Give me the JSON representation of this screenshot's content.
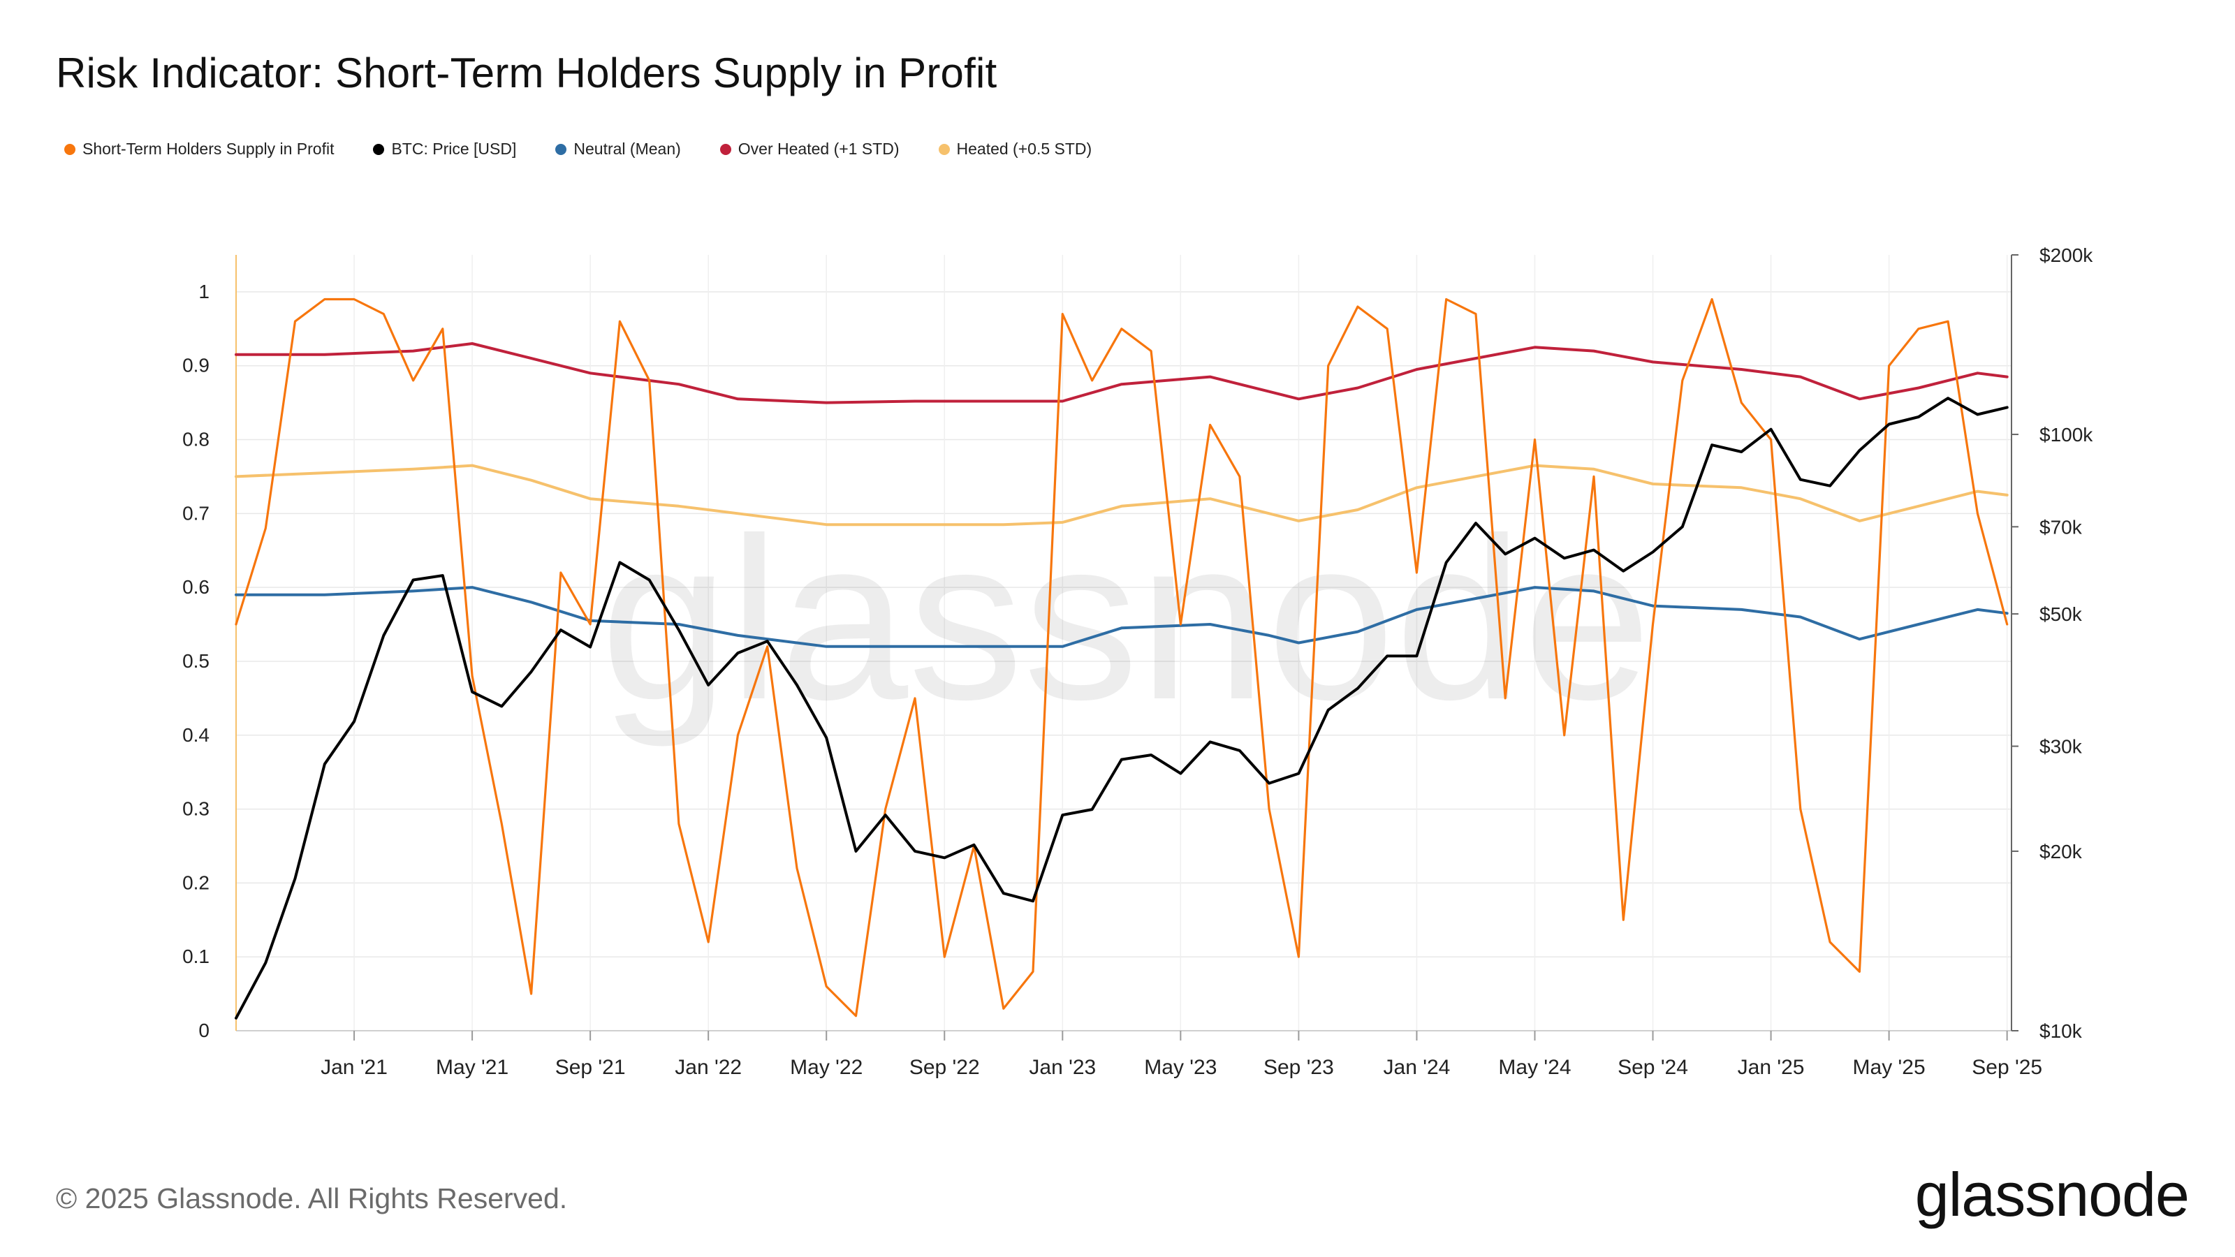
{
  "page": {
    "title": "Risk Indicator: Short-Term Holders Supply in Profit",
    "copyright": "© 2025 Glassnode. All Rights Reserved.",
    "logo": "glassnode",
    "watermark": "glassnode"
  },
  "chart_data": {
    "type": "line",
    "title": "Risk Indicator: Short-Term Holders Supply in Profit",
    "legend_placement": "top-left",
    "grid": true,
    "x_ticks": [
      "Jan '21",
      "May '21",
      "Sep '21",
      "Jan '22",
      "May '22",
      "Sep '22",
      "Jan '23",
      "May '23",
      "Sep '23",
      "Jan '24",
      "May '24",
      "Sep '24",
      "Jan '25",
      "May '25",
      "Sep '25"
    ],
    "x_range": [
      "2020-09",
      "2025-09"
    ],
    "y_left": {
      "range": [
        0,
        1.05
      ],
      "ticks": [
        "0",
        "0.1",
        "0.2",
        "0.3",
        "0.4",
        "0.5",
        "0.6",
        "0.7",
        "0.8",
        "0.9",
        "1"
      ]
    },
    "y_right": {
      "scale": "log",
      "unit": "USD",
      "range": [
        10000,
        200000
      ],
      "ticks": [
        {
          "label": "$10k",
          "value": 10000
        },
        {
          "label": "$20k",
          "value": 20000
        },
        {
          "label": "$30k",
          "value": 30000
        },
        {
          "label": "$50k",
          "value": 50000
        },
        {
          "label": "$70k",
          "value": 70000
        },
        {
          "label": "$100k",
          "value": 100000
        },
        {
          "label": "$200k",
          "value": 200000
        }
      ]
    },
    "series": [
      {
        "name": "Short-Term Holders Supply in Profit",
        "axis": "left",
        "color": "#f7760d",
        "points": [
          [
            "2020-09",
            0.55
          ],
          [
            "2020-10",
            0.68
          ],
          [
            "2020-11",
            0.96
          ],
          [
            "2020-12",
            0.99
          ],
          [
            "2021-01",
            0.99
          ],
          [
            "2021-02",
            0.97
          ],
          [
            "2021-03",
            0.88
          ],
          [
            "2021-04",
            0.95
          ],
          [
            "2021-05",
            0.48
          ],
          [
            "2021-06",
            0.28
          ],
          [
            "2021-07",
            0.05
          ],
          [
            "2021-08",
            0.62
          ],
          [
            "2021-09",
            0.55
          ],
          [
            "2021-10",
            0.96
          ],
          [
            "2021-11",
            0.88
          ],
          [
            "2021-12",
            0.28
          ],
          [
            "2022-01",
            0.12
          ],
          [
            "2022-02",
            0.4
          ],
          [
            "2022-03",
            0.52
          ],
          [
            "2022-04",
            0.22
          ],
          [
            "2022-05",
            0.06
          ],
          [
            "2022-06",
            0.02
          ],
          [
            "2022-07",
            0.3
          ],
          [
            "2022-08",
            0.45
          ],
          [
            "2022-09",
            0.1
          ],
          [
            "2022-10",
            0.25
          ],
          [
            "2022-11",
            0.03
          ],
          [
            "2022-12",
            0.08
          ],
          [
            "2023-01",
            0.97
          ],
          [
            "2023-02",
            0.88
          ],
          [
            "2023-03",
            0.95
          ],
          [
            "2023-04",
            0.92
          ],
          [
            "2023-05",
            0.55
          ],
          [
            "2023-06",
            0.82
          ],
          [
            "2023-07",
            0.75
          ],
          [
            "2023-08",
            0.3
          ],
          [
            "2023-09",
            0.1
          ],
          [
            "2023-10",
            0.9
          ],
          [
            "2023-11",
            0.98
          ],
          [
            "2023-12",
            0.95
          ],
          [
            "2024-01",
            0.62
          ],
          [
            "2024-02",
            0.99
          ],
          [
            "2024-03",
            0.97
          ],
          [
            "2024-04",
            0.45
          ],
          [
            "2024-05",
            0.8
          ],
          [
            "2024-06",
            0.4
          ],
          [
            "2024-07",
            0.75
          ],
          [
            "2024-08",
            0.15
          ],
          [
            "2024-09",
            0.55
          ],
          [
            "2024-10",
            0.88
          ],
          [
            "2024-11",
            0.99
          ],
          [
            "2024-12",
            0.85
          ],
          [
            "2025-01",
            0.8
          ],
          [
            "2025-02",
            0.3
          ],
          [
            "2025-03",
            0.12
          ],
          [
            "2025-04",
            0.08
          ],
          [
            "2025-05",
            0.9
          ],
          [
            "2025-06",
            0.95
          ],
          [
            "2025-07",
            0.96
          ],
          [
            "2025-08",
            0.7
          ],
          [
            "2025-09",
            0.55
          ]
        ]
      },
      {
        "name": "BTC: Price [USD]",
        "axis": "right",
        "color": "#000000",
        "points": [
          [
            "2020-09",
            10500
          ],
          [
            "2020-10",
            13000
          ],
          [
            "2020-11",
            18000
          ],
          [
            "2020-12",
            28000
          ],
          [
            "2021-01",
            33000
          ],
          [
            "2021-02",
            46000
          ],
          [
            "2021-03",
            57000
          ],
          [
            "2021-04",
            58000
          ],
          [
            "2021-05",
            37000
          ],
          [
            "2021-06",
            35000
          ],
          [
            "2021-07",
            40000
          ],
          [
            "2021-08",
            47000
          ],
          [
            "2021-09",
            44000
          ],
          [
            "2021-10",
            61000
          ],
          [
            "2021-11",
            57000
          ],
          [
            "2021-12",
            47000
          ],
          [
            "2022-01",
            38000
          ],
          [
            "2022-02",
            43000
          ],
          [
            "2022-03",
            45000
          ],
          [
            "2022-04",
            38000
          ],
          [
            "2022-05",
            31000
          ],
          [
            "2022-06",
            20000
          ],
          [
            "2022-07",
            23000
          ],
          [
            "2022-08",
            20000
          ],
          [
            "2022-09",
            19500
          ],
          [
            "2022-10",
            20500
          ],
          [
            "2022-11",
            17000
          ],
          [
            "2022-12",
            16500
          ],
          [
            "2023-01",
            23000
          ],
          [
            "2023-02",
            23500
          ],
          [
            "2023-03",
            28500
          ],
          [
            "2023-04",
            29000
          ],
          [
            "2023-05",
            27000
          ],
          [
            "2023-06",
            30500
          ],
          [
            "2023-07",
            29500
          ],
          [
            "2023-08",
            26000
          ],
          [
            "2023-09",
            27000
          ],
          [
            "2023-10",
            34500
          ],
          [
            "2023-11",
            37500
          ],
          [
            "2023-12",
            42500
          ],
          [
            "2024-01",
            42500
          ],
          [
            "2024-02",
            61000
          ],
          [
            "2024-03",
            71000
          ],
          [
            "2024-04",
            63000
          ],
          [
            "2024-05",
            67000
          ],
          [
            "2024-06",
            62000
          ],
          [
            "2024-07",
            64000
          ],
          [
            "2024-08",
            59000
          ],
          [
            "2024-09",
            63500
          ],
          [
            "2024-10",
            70000
          ],
          [
            "2024-11",
            96000
          ],
          [
            "2024-12",
            93500
          ],
          [
            "2025-01",
            102000
          ],
          [
            "2025-02",
            84000
          ],
          [
            "2025-03",
            82000
          ],
          [
            "2025-04",
            94000
          ],
          [
            "2025-05",
            104000
          ],
          [
            "2025-06",
            107000
          ],
          [
            "2025-07",
            115000
          ],
          [
            "2025-08",
            108000
          ],
          [
            "2025-09",
            111000
          ]
        ]
      },
      {
        "name": "Neutral (Mean)",
        "axis": "left",
        "color": "#2e6da4",
        "points": [
          [
            "2020-09",
            0.59
          ],
          [
            "2020-12",
            0.59
          ],
          [
            "2021-03",
            0.595
          ],
          [
            "2021-05",
            0.6
          ],
          [
            "2021-07",
            0.58
          ],
          [
            "2021-09",
            0.555
          ],
          [
            "2021-12",
            0.55
          ],
          [
            "2022-02",
            0.535
          ],
          [
            "2022-05",
            0.52
          ],
          [
            "2022-08",
            0.52
          ],
          [
            "2022-11",
            0.52
          ],
          [
            "2023-01",
            0.52
          ],
          [
            "2023-03",
            0.545
          ],
          [
            "2023-06",
            0.55
          ],
          [
            "2023-08",
            0.535
          ],
          [
            "2023-09",
            0.525
          ],
          [
            "2023-11",
            0.54
          ],
          [
            "2024-01",
            0.57
          ],
          [
            "2024-03",
            0.585
          ],
          [
            "2024-05",
            0.6
          ],
          [
            "2024-07",
            0.595
          ],
          [
            "2024-09",
            0.575
          ],
          [
            "2024-12",
            0.57
          ],
          [
            "2025-02",
            0.56
          ],
          [
            "2025-04",
            0.53
          ],
          [
            "2025-06",
            0.55
          ],
          [
            "2025-08",
            0.57
          ],
          [
            "2025-09",
            0.565
          ]
        ]
      },
      {
        "name": "Over Heated (+1 STD)",
        "axis": "left",
        "color": "#c0213b",
        "points": [
          [
            "2020-09",
            0.915
          ],
          [
            "2020-12",
            0.915
          ],
          [
            "2021-03",
            0.92
          ],
          [
            "2021-05",
            0.93
          ],
          [
            "2021-07",
            0.91
          ],
          [
            "2021-09",
            0.89
          ],
          [
            "2021-12",
            0.875
          ],
          [
            "2022-02",
            0.855
          ],
          [
            "2022-05",
            0.85
          ],
          [
            "2022-08",
            0.852
          ],
          [
            "2022-11",
            0.852
          ],
          [
            "2023-01",
            0.852
          ],
          [
            "2023-03",
            0.875
          ],
          [
            "2023-06",
            0.885
          ],
          [
            "2023-08",
            0.865
          ],
          [
            "2023-09",
            0.855
          ],
          [
            "2023-11",
            0.87
          ],
          [
            "2024-01",
            0.895
          ],
          [
            "2024-03",
            0.91
          ],
          [
            "2024-05",
            0.925
          ],
          [
            "2024-07",
            0.92
          ],
          [
            "2024-09",
            0.905
          ],
          [
            "2024-12",
            0.895
          ],
          [
            "2025-02",
            0.885
          ],
          [
            "2025-04",
            0.855
          ],
          [
            "2025-06",
            0.87
          ],
          [
            "2025-08",
            0.89
          ],
          [
            "2025-09",
            0.885
          ]
        ]
      },
      {
        "name": "Heated (+0.5 STD)",
        "axis": "left",
        "color": "#f6c16c",
        "points": [
          [
            "2020-09",
            0.75
          ],
          [
            "2020-12",
            0.755
          ],
          [
            "2021-03",
            0.76
          ],
          [
            "2021-05",
            0.765
          ],
          [
            "2021-07",
            0.745
          ],
          [
            "2021-09",
            0.72
          ],
          [
            "2021-12",
            0.71
          ],
          [
            "2022-02",
            0.7
          ],
          [
            "2022-05",
            0.685
          ],
          [
            "2022-08",
            0.685
          ],
          [
            "2022-11",
            0.685
          ],
          [
            "2023-01",
            0.688
          ],
          [
            "2023-03",
            0.71
          ],
          [
            "2023-06",
            0.72
          ],
          [
            "2023-08",
            0.7
          ],
          [
            "2023-09",
            0.69
          ],
          [
            "2023-11",
            0.705
          ],
          [
            "2024-01",
            0.735
          ],
          [
            "2024-03",
            0.75
          ],
          [
            "2024-05",
            0.765
          ],
          [
            "2024-07",
            0.76
          ],
          [
            "2024-09",
            0.74
          ],
          [
            "2024-12",
            0.735
          ],
          [
            "2025-02",
            0.72
          ],
          [
            "2025-04",
            0.69
          ],
          [
            "2025-06",
            0.71
          ],
          [
            "2025-08",
            0.73
          ],
          [
            "2025-09",
            0.725
          ]
        ]
      }
    ]
  }
}
